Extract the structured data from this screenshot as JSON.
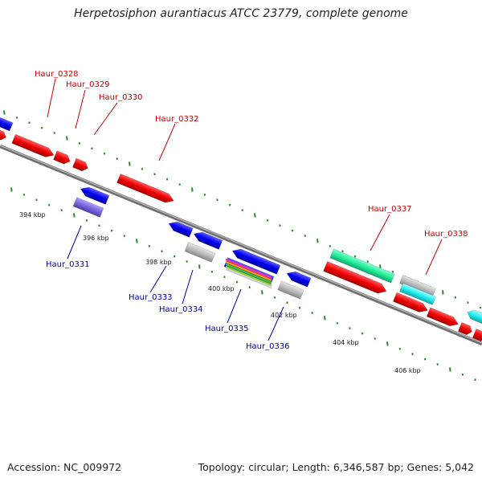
{
  "header": {
    "title": "Herpetosiphon aurantiacus ATCC 23779, complete genome"
  },
  "footer": {
    "accession": "Accession: NC_009972",
    "topology": "Topology: circular; Length: 6,346,587 bp; Genes: 5,042"
  },
  "scale_labels": [
    "394 kbp",
    "396 kbp",
    "398 kbp",
    "400 kbp",
    "402 kbp",
    "404 kbp",
    "406 kbp"
  ],
  "forward_gene_labels": [
    "Haur_0328",
    "Haur_0329",
    "Haur_0330",
    "Haur_0332",
    "Haur_0337",
    "Haur_0338"
  ],
  "reverse_gene_labels": [
    "Haur_0331",
    "Haur_0333",
    "Haur_0334",
    "Haur_0335",
    "Haur_0336"
  ],
  "colors": {
    "forward_strand": "#ee0000",
    "reverse_strand": "#0000ee",
    "label_forward": "#cc0000",
    "label_reverse": "#0000aa",
    "tick": "#2a8a2a",
    "backbone": "#888888"
  }
}
